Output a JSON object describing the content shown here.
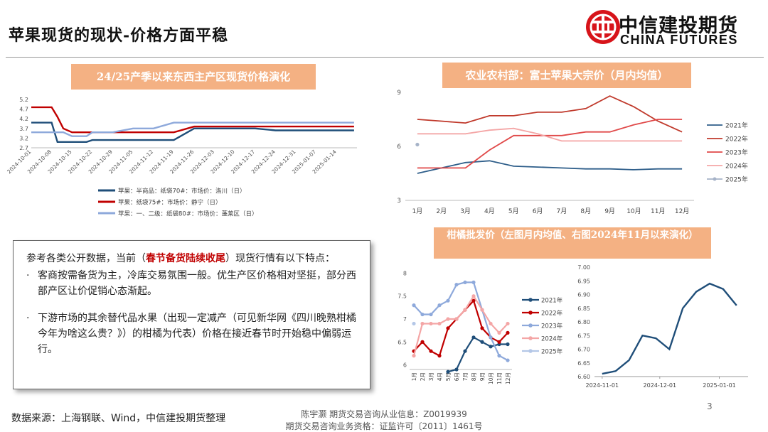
{
  "page": {
    "title": "苹果现货的现状-价格方面平稳",
    "page_number": "3",
    "source": "数据来源：上海钢联、Wind，中信建投期货整理",
    "footer_line1": "陈宇灏 期货交易咨询从业信息：Z0019939",
    "footer_line2": "期货交易咨询业务资格：证监许可〔2011〕1461号"
  },
  "logo": {
    "cn": "中信建投期货",
    "en": "CHINA FUTURES",
    "color": "#d7141a"
  },
  "panels": {
    "left_title": "24/25产季以来东西主产区现货价格演化",
    "right_title": "农业农村部：富士苹果大宗价（月内均值）",
    "bottom_title": "柑橘批发价（左图月内均值、右图2024年11月以来演化）"
  },
  "note": {
    "line1_pre": "参考各类公开数据，当前（",
    "line1_highlight": "春节备货陆续收尾",
    "line1_post": "）现货行情有以下特点：",
    "bullet_mark": "·",
    "bullet1": "客商按需备货为主，冷库交易氛围一般。优生产区价格相对坚挺，部分西部产区让价促销心态渐起。",
    "bullet2": "下游市场的其余替代品水果（出现一定减产（可见新华网《四川晚熟柑橘今年为啥这么贵？》）的柑橘为代表）价格在接近春节时开始稳中偏弱运行。"
  },
  "chart_data": [
    {
      "type": "line",
      "title": "24/25产季以来东西主产区现货价格演化",
      "x": [
        "2024-10-01",
        "2024-10-05",
        "2024-10-08",
        "2024-10-10",
        "2024-10-12",
        "2024-10-15",
        "2024-10-20",
        "2024-10-22",
        "2024-10-29",
        "2024-11-05",
        "2024-11-12",
        "2024-11-19",
        "2024-11-26",
        "2024-12-03",
        "2024-12-10",
        "2024-12-17",
        "2024-12-24",
        "2024-12-31",
        "2025-01-07",
        "2025-01-14",
        "2025-01-20"
      ],
      "x_ticks": [
        "2024-10-01",
        "2024-10-08",
        "2024-10-15",
        "2024-10-22",
        "2024-10-29",
        "2024-11-05",
        "2024-11-12",
        "2024-11-19",
        "2024-11-26",
        "2024-12-03",
        "2024-12-10",
        "2024-12-17",
        "2024-12-24",
        "2024-12-31",
        "2025-01-07",
        "2025-01-14"
      ],
      "y_ticks": [
        "2.7",
        "3.2",
        "3.7",
        "4.2",
        "4.7",
        "5.2"
      ],
      "ylim": [
        2.7,
        5.2
      ],
      "series": [
        {
          "name": "苹果：半商品：纸袋70#：市场价：洛川（日）",
          "color": "#1f4e79",
          "values": [
            4.0,
            4.0,
            4.0,
            3.0,
            3.0,
            3.0,
            3.0,
            3.1,
            3.1,
            3.1,
            3.1,
            3.1,
            3.7,
            3.7,
            3.7,
            3.7,
            3.6,
            3.6,
            3.6,
            3.6,
            3.6
          ]
        },
        {
          "name": "苹果：纸袋75#：市场价：静宁（日）",
          "color": "#c00000",
          "values": [
            4.8,
            4.8,
            4.8,
            4.3,
            3.7,
            3.5,
            3.5,
            3.5,
            3.5,
            3.5,
            3.5,
            3.5,
            3.8,
            3.8,
            3.8,
            3.8,
            3.8,
            3.8,
            3.8,
            3.8,
            3.8
          ]
        },
        {
          "name": "苹果：一、二级：纸袋80#：市场价：蓬莱区（日）",
          "color": "#8ea9db",
          "values": [
            3.5,
            3.5,
            3.5,
            3.5,
            3.5,
            3.3,
            3.3,
            3.5,
            3.5,
            3.7,
            3.7,
            4.0,
            4.0,
            4.0,
            4.0,
            4.0,
            4.0,
            4.0,
            4.0,
            4.0,
            4.0
          ]
        }
      ]
    },
    {
      "type": "line",
      "title": "农业农村部：富士苹果大宗价（月内均值）",
      "categories": [
        "1月",
        "2月",
        "3月",
        "4月",
        "5月",
        "6月",
        "7月",
        "8月",
        "9月",
        "10月",
        "11月",
        "12月"
      ],
      "y_ticks": [
        "3",
        "6",
        "9"
      ],
      "ylim": [
        3,
        9
      ],
      "series": [
        {
          "name": "2021年",
          "color": "#2e5e8a",
          "values": [
            4.5,
            4.8,
            5.1,
            5.2,
            4.9,
            4.85,
            4.8,
            4.75,
            4.75,
            4.7,
            4.75,
            4.75
          ]
        },
        {
          "name": "2022年",
          "color": "#c0392b",
          "values": [
            7.5,
            7.4,
            7.3,
            7.7,
            7.7,
            7.9,
            7.9,
            8.1,
            8.8,
            8.2,
            7.4,
            6.8
          ]
        },
        {
          "name": "2023年",
          "color": "#e04848",
          "values": [
            4.8,
            4.8,
            4.8,
            5.8,
            6.6,
            6.6,
            6.6,
            6.8,
            6.8,
            7.2,
            7.5,
            7.5
          ]
        },
        {
          "name": "2024年",
          "color": "#f4a6a6",
          "values": [
            6.7,
            6.7,
            6.7,
            6.9,
            7.0,
            6.7,
            6.3,
            6.3,
            6.3,
            6.3,
            6.3,
            6.3
          ]
        },
        {
          "name": "2025年",
          "color": "#a6b3c8",
          "values": [
            6.1,
            null,
            null,
            null,
            null,
            null,
            null,
            null,
            null,
            null,
            null,
            null
          ]
        }
      ]
    },
    {
      "type": "line",
      "title": "柑橘批发价（左图月内均值）",
      "categories": [
        "1月",
        "2月",
        "3月",
        "4月",
        "5月",
        "6月",
        "7月",
        "8月",
        "9月",
        "10月",
        "11月",
        "12月"
      ],
      "y_ticks": [
        "6",
        "6.5",
        "7",
        "7.5",
        "8"
      ],
      "ylim": [
        5.9,
        8.1
      ],
      "series": [
        {
          "name": "2021年",
          "color": "#1f4e79",
          "values": [
            null,
            null,
            null,
            null,
            5.85,
            5.9,
            6.3,
            6.6,
            6.5,
            6.4,
            6.45,
            6.45
          ]
        },
        {
          "name": "2022年",
          "color": "#c00000",
          "values": [
            6.3,
            6.5,
            6.3,
            6.2,
            6.8,
            7.0,
            7.2,
            7.4,
            6.8,
            6.6,
            6.5,
            6.7
          ]
        },
        {
          "name": "2023年",
          "color": "#8ea9db",
          "values": [
            7.3,
            7.1,
            7.1,
            7.3,
            7.4,
            7.75,
            7.8,
            7.8,
            7.2,
            6.6,
            6.2,
            6.1
          ]
        },
        {
          "name": "2024年",
          "color": "#f4a6a6",
          "values": [
            6.2,
            6.9,
            6.9,
            6.9,
            7.0,
            7.0,
            7.2,
            7.5,
            7.2,
            6.9,
            6.7,
            6.9
          ]
        },
        {
          "name": "2025年",
          "color": "#b4c7e7",
          "values": [
            6.9,
            null,
            null,
            null,
            null,
            null,
            null,
            null,
            null,
            null,
            null,
            null
          ]
        }
      ]
    },
    {
      "type": "line",
      "title": "柑橘批发价（右图2024年11月以来演化）",
      "x": [
        "2024-11-01",
        "2024-11-08",
        "2024-11-15",
        "2024-11-22",
        "2024-11-29",
        "2024-12-06",
        "2024-12-13",
        "2024-12-20",
        "2024-12-27",
        "2025-01-03",
        "2025-01-10",
        "2025-01-17"
      ],
      "x_ticks": [
        "2024-11-01",
        "2024-12-01",
        "2025-01-01"
      ],
      "y_ticks": [
        "6.60",
        "6.65",
        "6.70",
        "6.75",
        "6.80",
        "6.85",
        "6.90",
        "6.95",
        "7.00"
      ],
      "ylim": [
        6.6,
        7.0
      ],
      "series": [
        {
          "name": "",
          "color": "#1f4e79",
          "values": [
            6.61,
            6.62,
            6.66,
            6.75,
            6.74,
            6.7,
            6.85,
            6.91,
            6.94,
            6.92,
            6.86,
            null
          ]
        }
      ]
    }
  ]
}
